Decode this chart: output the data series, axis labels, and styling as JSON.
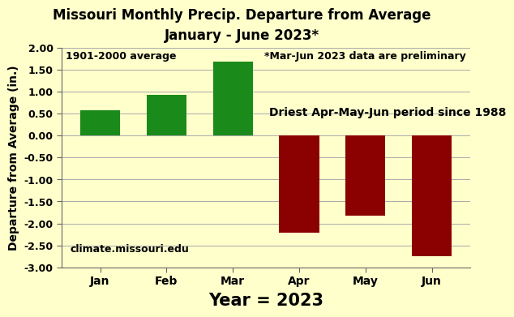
{
  "title_line1": "Missouri Monthly Precip. Departure from Average",
  "title_line2": "January - June 2023*",
  "xlabel": "Year = 2023",
  "ylabel": "Departure from Average (in.)",
  "categories": [
    "Jan",
    "Feb",
    "Mar",
    "Apr",
    "May",
    "Jun"
  ],
  "values": [
    0.57,
    0.92,
    1.68,
    -2.22,
    -1.82,
    -2.75
  ],
  "positive_color": "#1a8a1a",
  "negative_color": "#8b0000",
  "background_color": "#ffffcc",
  "ylim": [
    -3.0,
    2.0
  ],
  "yticks": [
    -3.0,
    -2.5,
    -2.0,
    -1.5,
    -1.0,
    -0.5,
    0.0,
    0.5,
    1.0,
    1.5,
    2.0
  ],
  "annotation_left": "1901-2000 average",
  "annotation_right": "*Mar-Jun 2023 data are preliminary",
  "annotation_driest": "Driest Apr-May-Jun period since 1988",
  "annotation_website": "climate.missouri.edu",
  "grid_color": "#aaaaaa",
  "title_fontsize": 12,
  "axis_label_fontsize": 10,
  "tick_fontsize": 9,
  "xlabel_fontsize": 15,
  "annot_fontsize": 9,
  "driest_fontsize": 10
}
